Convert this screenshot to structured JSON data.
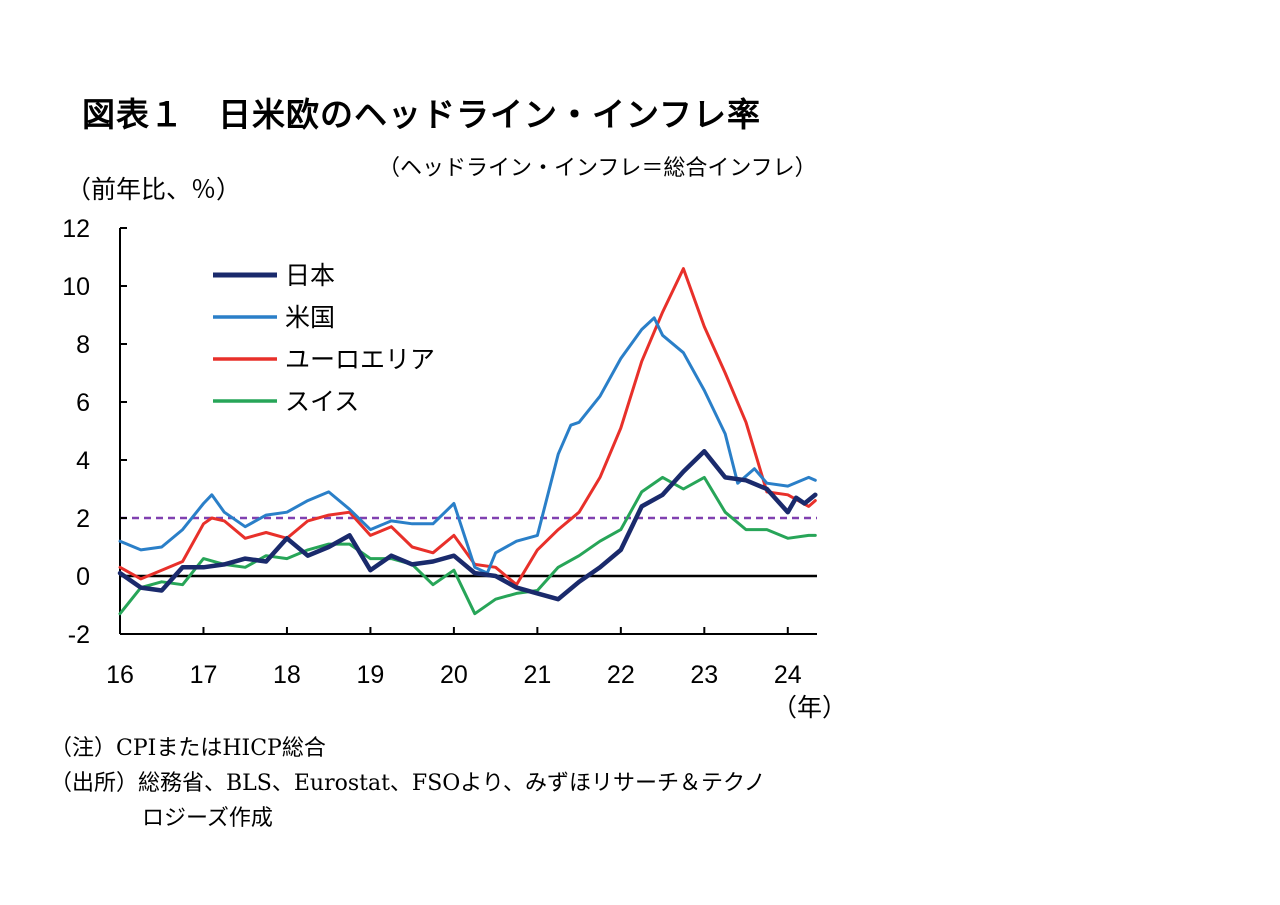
{
  "header": {
    "title": "図表１　日米欧のヘッドライン・インフレ率",
    "subtitle": "（ヘッドライン・インフレ＝総合インフレ）",
    "unit_label": "（前年比、％）"
  },
  "notes": {
    "note1": "（注）CPIまたはHICP総合",
    "source_line1": "（出所）総務省、BLS、Eurostat、FSOより、みずほリサーチ＆テクノ",
    "source_line2": "ロジーズ作成"
  },
  "chart_data": {
    "type": "line",
    "title": "日米欧のヘッドライン・インフレ率",
    "xlabel": "（年）",
    "ylabel": "（前年比、％）",
    "ylim": [
      -2,
      12
    ],
    "yticks": [
      -2,
      0,
      2,
      4,
      6,
      8,
      10,
      12
    ],
    "xlim": [
      2016.0,
      2024.35
    ],
    "xticks": [
      {
        "value": 2016,
        "label": "16"
      },
      {
        "value": 2017,
        "label": "17"
      },
      {
        "value": 2018,
        "label": "18"
      },
      {
        "value": 2019,
        "label": "19"
      },
      {
        "value": 2020,
        "label": "20"
      },
      {
        "value": 2021,
        "label": "21"
      },
      {
        "value": 2022,
        "label": "22"
      },
      {
        "value": 2023,
        "label": "23"
      },
      {
        "value": 2024,
        "label": "24"
      }
    ],
    "x_unit_label": "（年）",
    "reference_line": {
      "value": 2,
      "style": "dashed",
      "color": "#8040b0"
    },
    "zero_line": {
      "value": 0,
      "color": "#000000"
    },
    "legend_position": "top-left",
    "series": [
      {
        "name": "日本",
        "color": "#1a2a6c",
        "width": 4.5,
        "x": [
          2016.0,
          2016.25,
          2016.5,
          2016.75,
          2017.0,
          2017.25,
          2017.5,
          2017.75,
          2018.0,
          2018.25,
          2018.5,
          2018.75,
          2019.0,
          2019.25,
          2019.5,
          2019.75,
          2020.0,
          2020.25,
          2020.5,
          2020.75,
          2021.0,
          2021.25,
          2021.5,
          2021.75,
          2022.0,
          2022.25,
          2022.5,
          2022.75,
          2023.0,
          2023.25,
          2023.5,
          2023.75,
          2024.0,
          2024.1,
          2024.2,
          2024.33
        ],
        "values": [
          0.1,
          -0.4,
          -0.5,
          0.3,
          0.3,
          0.4,
          0.6,
          0.5,
          1.3,
          0.7,
          1.0,
          1.4,
          0.2,
          0.7,
          0.4,
          0.5,
          0.7,
          0.1,
          0.0,
          -0.4,
          -0.6,
          -0.8,
          -0.2,
          0.3,
          0.9,
          2.4,
          2.8,
          3.6,
          4.3,
          3.4,
          3.3,
          3.0,
          2.2,
          2.7,
          2.5,
          2.8
        ]
      },
      {
        "name": "米国",
        "color": "#2a7fc8",
        "width": 3,
        "x": [
          2016.0,
          2016.25,
          2016.5,
          2016.75,
          2017.0,
          2017.1,
          2017.25,
          2017.5,
          2017.75,
          2018.0,
          2018.25,
          2018.5,
          2018.75,
          2019.0,
          2019.25,
          2019.5,
          2019.75,
          2020.0,
          2020.25,
          2020.4,
          2020.5,
          2020.75,
          2021.0,
          2021.25,
          2021.4,
          2021.5,
          2021.75,
          2022.0,
          2022.25,
          2022.4,
          2022.5,
          2022.75,
          2023.0,
          2023.25,
          2023.4,
          2023.6,
          2023.75,
          2024.0,
          2024.25,
          2024.33
        ],
        "values": [
          1.2,
          0.9,
          1.0,
          1.6,
          2.5,
          2.8,
          2.2,
          1.7,
          2.1,
          2.2,
          2.6,
          2.9,
          2.3,
          1.6,
          1.9,
          1.8,
          1.8,
          2.5,
          0.3,
          0.1,
          0.8,
          1.2,
          1.4,
          4.2,
          5.2,
          5.3,
          6.2,
          7.5,
          8.5,
          8.9,
          8.3,
          7.7,
          6.4,
          4.9,
          3.2,
          3.7,
          3.2,
          3.1,
          3.4,
          3.3
        ]
      },
      {
        "name": "ユーロエリア",
        "color": "#e8302a",
        "width": 3,
        "x": [
          2016.0,
          2016.25,
          2016.5,
          2016.75,
          2017.0,
          2017.1,
          2017.25,
          2017.5,
          2017.75,
          2018.0,
          2018.25,
          2018.5,
          2018.75,
          2019.0,
          2019.25,
          2019.5,
          2019.75,
          2020.0,
          2020.25,
          2020.5,
          2020.75,
          2021.0,
          2021.25,
          2021.5,
          2021.75,
          2022.0,
          2022.25,
          2022.5,
          2022.75,
          2023.0,
          2023.25,
          2023.5,
          2023.75,
          2024.0,
          2024.25,
          2024.33
        ],
        "values": [
          0.3,
          -0.1,
          0.2,
          0.5,
          1.8,
          2.0,
          1.9,
          1.3,
          1.5,
          1.3,
          1.9,
          2.1,
          2.2,
          1.4,
          1.7,
          1.0,
          0.8,
          1.4,
          0.4,
          0.3,
          -0.3,
          0.9,
          1.6,
          2.2,
          3.4,
          5.1,
          7.4,
          9.1,
          10.6,
          8.6,
          7.0,
          5.3,
          2.9,
          2.8,
          2.4,
          2.6
        ]
      },
      {
        "name": "スイス",
        "color": "#27a558",
        "width": 3,
        "x": [
          2016.0,
          2016.25,
          2016.5,
          2016.75,
          2017.0,
          2017.25,
          2017.5,
          2017.75,
          2018.0,
          2018.25,
          2018.5,
          2018.75,
          2019.0,
          2019.25,
          2019.5,
          2019.75,
          2020.0,
          2020.25,
          2020.5,
          2020.75,
          2021.0,
          2021.25,
          2021.5,
          2021.75,
          2022.0,
          2022.25,
          2022.5,
          2022.75,
          2023.0,
          2023.25,
          2023.5,
          2023.75,
          2024.0,
          2024.25,
          2024.33
        ],
        "values": [
          -1.3,
          -0.4,
          -0.2,
          -0.3,
          0.6,
          0.4,
          0.3,
          0.7,
          0.6,
          0.9,
          1.1,
          1.1,
          0.6,
          0.6,
          0.4,
          -0.3,
          0.2,
          -1.3,
          -0.8,
          -0.6,
          -0.5,
          0.3,
          0.7,
          1.2,
          1.6,
          2.9,
          3.4,
          3.0,
          3.4,
          2.2,
          1.6,
          1.6,
          1.3,
          1.4,
          1.4
        ]
      }
    ]
  }
}
